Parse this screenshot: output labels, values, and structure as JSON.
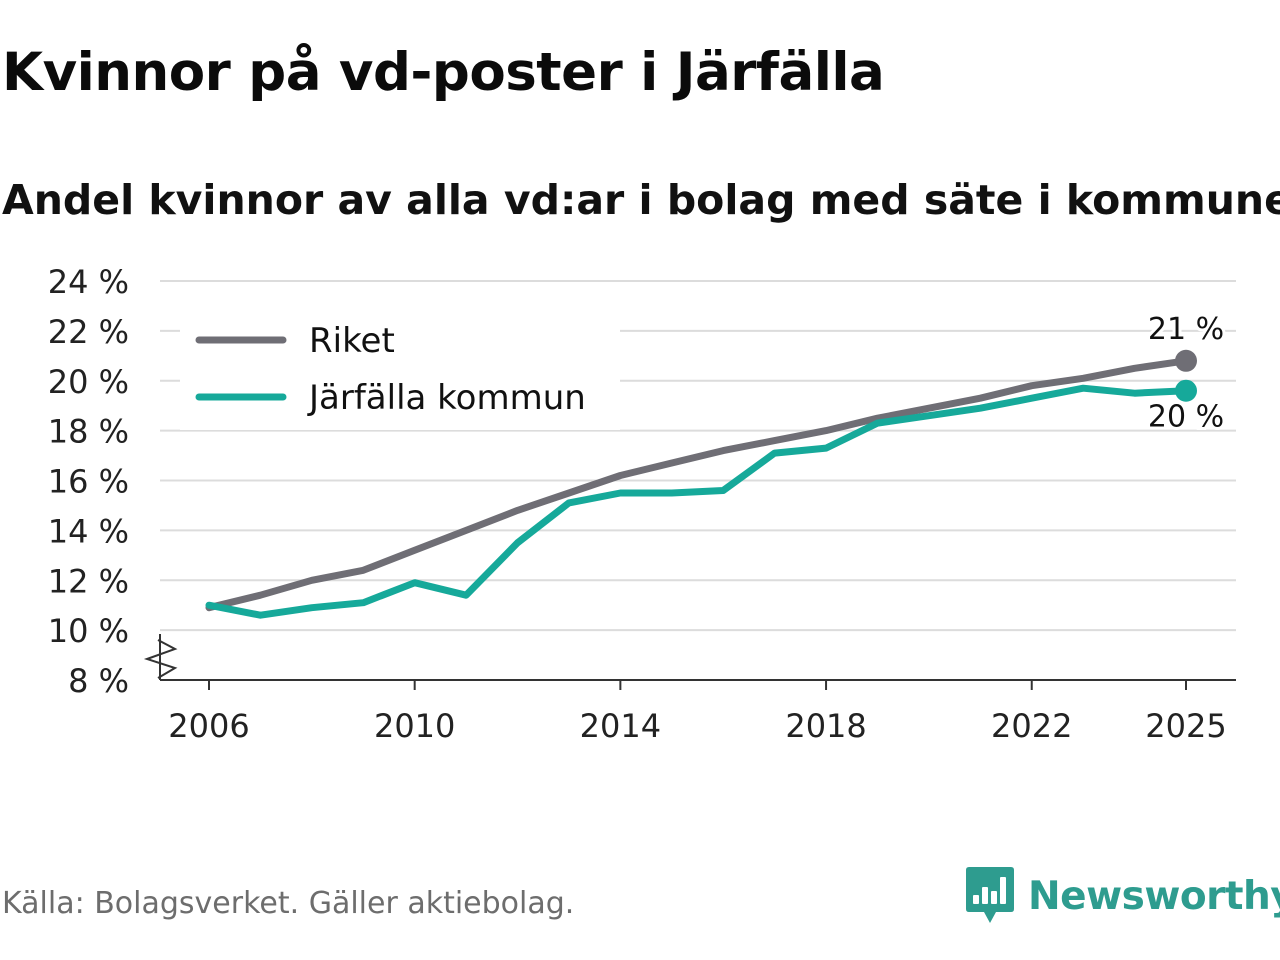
{
  "header": {
    "title": "Kvinnor på vd-poster i Järfälla",
    "subtitle": "Andel kvinnor av alla vd:ar i bolag med säte i kommunen"
  },
  "footer": {
    "source": "Källa: Bolagsverket. Gäller aktiebolag.",
    "brand": "Newsworthy",
    "brand_color": "#2e9c8f"
  },
  "chart_data": {
    "type": "line",
    "title": "Kvinnor på vd-poster i Järfälla",
    "subtitle": "Andel kvinnor av alla vd:ar i bolag med säte i kommunen",
    "xlabel": "",
    "ylabel": "",
    "x": [
      2006,
      2007,
      2008,
      2009,
      2010,
      2011,
      2012,
      2013,
      2014,
      2015,
      2016,
      2017,
      2018,
      2019,
      2020,
      2021,
      2022,
      2023,
      2024,
      2025
    ],
    "xticks": [
      2006,
      2010,
      2014,
      2018,
      2022,
      2025
    ],
    "yticks": [
      8,
      10,
      12,
      14,
      16,
      18,
      20,
      22,
      24
    ],
    "ytick_suffix": " %",
    "ylim": [
      8,
      24
    ],
    "grid": true,
    "legend_position": "top-left",
    "series": [
      {
        "name": "Riket",
        "color": "#6f6e75",
        "values": [
          10.9,
          11.4,
          12.0,
          12.4,
          13.2,
          14.0,
          14.8,
          15.5,
          16.2,
          16.7,
          17.2,
          17.6,
          18.0,
          18.5,
          18.9,
          19.3,
          19.8,
          20.1,
          20.5,
          20.8
        ],
        "end_label": "21 %"
      },
      {
        "name": "Järfälla kommun",
        "color": "#16a99a",
        "values": [
          11.0,
          10.6,
          10.9,
          11.1,
          11.9,
          11.4,
          13.5,
          15.1,
          15.5,
          15.5,
          15.6,
          17.1,
          17.3,
          18.3,
          18.6,
          18.9,
          19.3,
          19.7,
          19.5,
          19.6
        ],
        "end_label": "20 %"
      }
    ]
  }
}
